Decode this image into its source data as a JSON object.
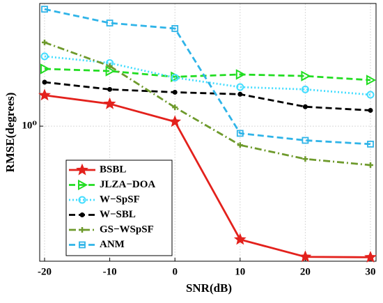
{
  "chart_data": {
    "type": "line",
    "x_label": "SNR(dB)",
    "y_label": "RMSE(degrees)",
    "x": [
      -20,
      -10,
      0,
      10,
      20,
      30
    ],
    "xlim": [
      -20,
      30
    ],
    "xticks": [
      -20,
      -10,
      0,
      10,
      20,
      30
    ],
    "ylim": [
      0.17,
      5
    ],
    "yticks": [
      {
        "value": 1,
        "label": "10⁰"
      }
    ],
    "log_y": true,
    "grid": true,
    "legend": "lower left",
    "series": [
      {
        "name": "BSBL",
        "color": "#e3211c",
        "line_style": "solid",
        "marker": "star",
        "values": [
          1.5,
          1.34,
          1.06,
          0.226,
          0.18,
          0.179
        ]
      },
      {
        "name": "JLZA−DOA",
        "color": "#22dd22",
        "line_style": "dashed",
        "marker": "triangle-right",
        "values": [
          2.12,
          2.06,
          1.91,
          1.97,
          1.93,
          1.83
        ]
      },
      {
        "name": "W−SpSF",
        "color": "#44ddff",
        "line_style": "dotted",
        "marker": "circle",
        "values": [
          2.5,
          2.29,
          1.89,
          1.67,
          1.62,
          1.51
        ]
      },
      {
        "name": "W−SBL",
        "color": "#000000",
        "line_style": "dashed",
        "marker": "dot",
        "values": [
          1.78,
          1.62,
          1.56,
          1.52,
          1.29,
          1.23
        ]
      },
      {
        "name": "GS−WSpSF",
        "color": "#6e9a2c",
        "line_style": "dashdot",
        "marker": "plus",
        "values": [
          3.0,
          2.2,
          1.28,
          0.78,
          0.65,
          0.6
        ]
      },
      {
        "name": "ANM",
        "color": "#2fb4e8",
        "line_style": "dashed",
        "marker": "square",
        "values": [
          4.64,
          3.87,
          3.6,
          0.91,
          0.83,
          0.79
        ]
      }
    ]
  }
}
